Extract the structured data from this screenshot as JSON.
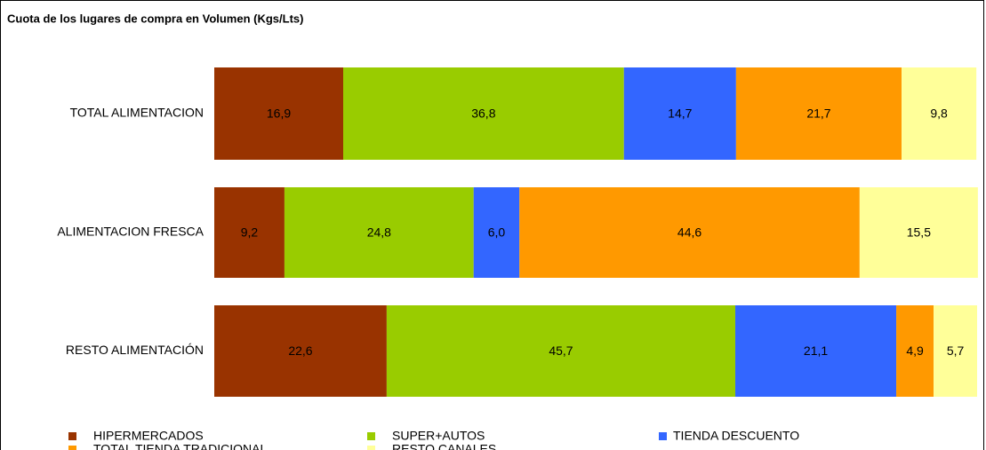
{
  "chart_data": {
    "type": "stacked-bar-horizontal",
    "title": "Cuota de los lugares de compra en Volumen (Kgs/Lts)",
    "categories": [
      "TOTAL ALIMENTACION",
      "ALIMENTACION FRESCA",
      "RESTO ALIMENTACIÓN"
    ],
    "xlim": [
      0,
      100
    ],
    "series": [
      {
        "name": "HIPERMERCADOS",
        "color": "#993300",
        "values": [
          16.9,
          9.2,
          22.6
        ],
        "value_labels": [
          "16,9",
          "9,2",
          "22,6"
        ]
      },
      {
        "name": "SUPER+AUTOS",
        "color": "#99cc00",
        "values": [
          36.8,
          24.8,
          45.7
        ],
        "value_labels": [
          "36,8",
          "24,8",
          "45,7"
        ]
      },
      {
        "name": "TIENDA DESCUENTO",
        "color": "#3366ff",
        "values": [
          14.7,
          6.0,
          21.1
        ],
        "value_labels": [
          "14,7",
          "6,0",
          "21,1"
        ]
      },
      {
        "name": "TOTAL TIENDA TRADICIONAL",
        "color": "#ff9900",
        "values": [
          21.7,
          44.6,
          4.9
        ],
        "value_labels": [
          "21,7",
          "44,6",
          "4,9"
        ]
      },
      {
        "name": "RESTO CANALES",
        "color": "#ffff99",
        "values": [
          9.8,
          15.5,
          5.7
        ],
        "value_labels": [
          "9,8",
          "15,5",
          "5,7"
        ]
      }
    ]
  }
}
